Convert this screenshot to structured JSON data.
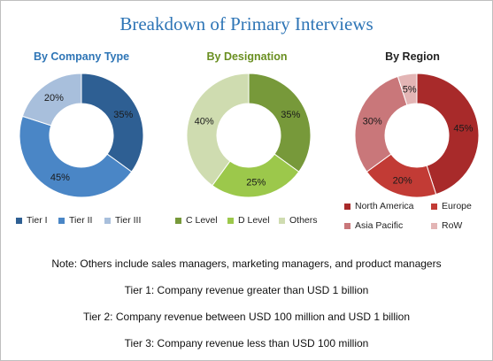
{
  "title": "Breakdown of Primary Interviews",
  "chart_data": [
    {
      "type": "pie",
      "title": "By Company Type",
      "title_color": "#2e75b6",
      "categories": [
        "Tier I",
        "Tier II",
        "Tier III"
      ],
      "values": [
        35,
        45,
        20
      ],
      "labels": [
        "35%",
        "45%",
        "20%"
      ],
      "colors": [
        "#2e5f93",
        "#4a86c6",
        "#a8bfdc"
      ],
      "legend_position": "bottom"
    },
    {
      "type": "pie",
      "title": "By Designation",
      "title_color": "#6a8f21",
      "categories": [
        "C Level",
        "D Level",
        "Others"
      ],
      "values": [
        35,
        25,
        40
      ],
      "labels": [
        "35%",
        "25%",
        "40%"
      ],
      "colors": [
        "#77993a",
        "#9cc84b",
        "#cfdcb0"
      ],
      "legend_position": "bottom"
    },
    {
      "type": "pie",
      "title": "By Region",
      "title_color": "#222222",
      "categories": [
        "North America",
        "Europe",
        "Asia Pacific",
        "RoW"
      ],
      "values": [
        45,
        20,
        30,
        5
      ],
      "labels": [
        "45%",
        "20%",
        "30%",
        "5%"
      ],
      "colors": [
        "#a82a2a",
        "#c23b35",
        "#c9777a",
        "#e3b5b5"
      ],
      "legend_position": "bottom"
    }
  ],
  "notes": {
    "note": "Note: Others include sales managers, marketing managers, and product managers",
    "tier1": "Tier 1: Company revenue greater than USD 1 billion",
    "tier2": "Tier 2: Company revenue between USD 100 million and USD 1 billion",
    "tier3": "Tier 3: Company revenue less than USD 100 million"
  }
}
